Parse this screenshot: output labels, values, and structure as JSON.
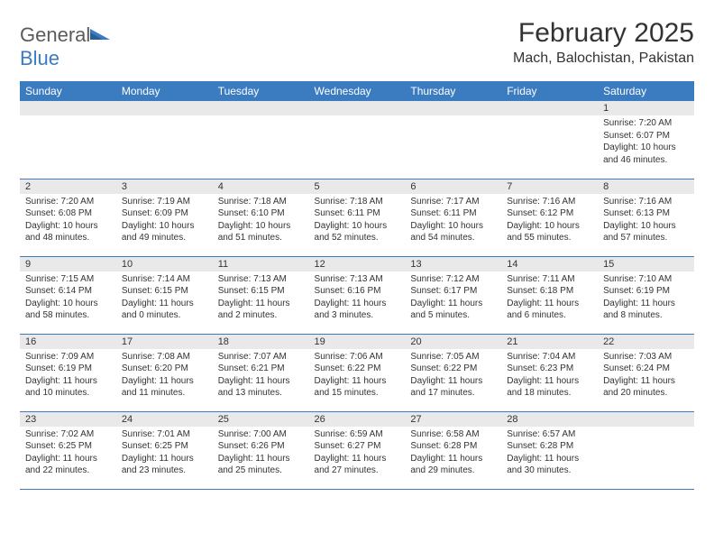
{
  "brand": {
    "word1": "General",
    "word2": "Blue",
    "word1_color": "#5b5b5b",
    "word2_color": "#3b7bbf",
    "icon_color": "#3b7bbf"
  },
  "title": "February 2025",
  "location": "Mach, Balochistan, Pakistan",
  "colors": {
    "header_bg": "#3b7bbf",
    "header_text": "#ffffff",
    "daynum_bg": "#e9e9e9",
    "row_divider": "#3b7bbf",
    "text": "#333333",
    "background": "#ffffff"
  },
  "typography": {
    "title_fontsize": 30,
    "location_fontsize": 16,
    "header_fontsize": 12,
    "daynum_fontsize": 11,
    "body_fontsize": 10
  },
  "layout": {
    "columns": 7,
    "rows": 5,
    "first_weekday_index": 6
  },
  "weekdays": [
    "Sunday",
    "Monday",
    "Tuesday",
    "Wednesday",
    "Thursday",
    "Friday",
    "Saturday"
  ],
  "days": [
    {
      "n": 1,
      "sunrise": "7:20 AM",
      "sunset": "6:07 PM",
      "daylight": "10 hours and 46 minutes."
    },
    {
      "n": 2,
      "sunrise": "7:20 AM",
      "sunset": "6:08 PM",
      "daylight": "10 hours and 48 minutes."
    },
    {
      "n": 3,
      "sunrise": "7:19 AM",
      "sunset": "6:09 PM",
      "daylight": "10 hours and 49 minutes."
    },
    {
      "n": 4,
      "sunrise": "7:18 AM",
      "sunset": "6:10 PM",
      "daylight": "10 hours and 51 minutes."
    },
    {
      "n": 5,
      "sunrise": "7:18 AM",
      "sunset": "6:11 PM",
      "daylight": "10 hours and 52 minutes."
    },
    {
      "n": 6,
      "sunrise": "7:17 AM",
      "sunset": "6:11 PM",
      "daylight": "10 hours and 54 minutes."
    },
    {
      "n": 7,
      "sunrise": "7:16 AM",
      "sunset": "6:12 PM",
      "daylight": "10 hours and 55 minutes."
    },
    {
      "n": 8,
      "sunrise": "7:16 AM",
      "sunset": "6:13 PM",
      "daylight": "10 hours and 57 minutes."
    },
    {
      "n": 9,
      "sunrise": "7:15 AM",
      "sunset": "6:14 PM",
      "daylight": "10 hours and 58 minutes."
    },
    {
      "n": 10,
      "sunrise": "7:14 AM",
      "sunset": "6:15 PM",
      "daylight": "11 hours and 0 minutes."
    },
    {
      "n": 11,
      "sunrise": "7:13 AM",
      "sunset": "6:15 PM",
      "daylight": "11 hours and 2 minutes."
    },
    {
      "n": 12,
      "sunrise": "7:13 AM",
      "sunset": "6:16 PM",
      "daylight": "11 hours and 3 minutes."
    },
    {
      "n": 13,
      "sunrise": "7:12 AM",
      "sunset": "6:17 PM",
      "daylight": "11 hours and 5 minutes."
    },
    {
      "n": 14,
      "sunrise": "7:11 AM",
      "sunset": "6:18 PM",
      "daylight": "11 hours and 6 minutes."
    },
    {
      "n": 15,
      "sunrise": "7:10 AM",
      "sunset": "6:19 PM",
      "daylight": "11 hours and 8 minutes."
    },
    {
      "n": 16,
      "sunrise": "7:09 AM",
      "sunset": "6:19 PM",
      "daylight": "11 hours and 10 minutes."
    },
    {
      "n": 17,
      "sunrise": "7:08 AM",
      "sunset": "6:20 PM",
      "daylight": "11 hours and 11 minutes."
    },
    {
      "n": 18,
      "sunrise": "7:07 AM",
      "sunset": "6:21 PM",
      "daylight": "11 hours and 13 minutes."
    },
    {
      "n": 19,
      "sunrise": "7:06 AM",
      "sunset": "6:22 PM",
      "daylight": "11 hours and 15 minutes."
    },
    {
      "n": 20,
      "sunrise": "7:05 AM",
      "sunset": "6:22 PM",
      "daylight": "11 hours and 17 minutes."
    },
    {
      "n": 21,
      "sunrise": "7:04 AM",
      "sunset": "6:23 PM",
      "daylight": "11 hours and 18 minutes."
    },
    {
      "n": 22,
      "sunrise": "7:03 AM",
      "sunset": "6:24 PM",
      "daylight": "11 hours and 20 minutes."
    },
    {
      "n": 23,
      "sunrise": "7:02 AM",
      "sunset": "6:25 PM",
      "daylight": "11 hours and 22 minutes."
    },
    {
      "n": 24,
      "sunrise": "7:01 AM",
      "sunset": "6:25 PM",
      "daylight": "11 hours and 23 minutes."
    },
    {
      "n": 25,
      "sunrise": "7:00 AM",
      "sunset": "6:26 PM",
      "daylight": "11 hours and 25 minutes."
    },
    {
      "n": 26,
      "sunrise": "6:59 AM",
      "sunset": "6:27 PM",
      "daylight": "11 hours and 27 minutes."
    },
    {
      "n": 27,
      "sunrise": "6:58 AM",
      "sunset": "6:28 PM",
      "daylight": "11 hours and 29 minutes."
    },
    {
      "n": 28,
      "sunrise": "6:57 AM",
      "sunset": "6:28 PM",
      "daylight": "11 hours and 30 minutes."
    }
  ],
  "labels": {
    "sunrise": "Sunrise:",
    "sunset": "Sunset:",
    "daylight": "Daylight:"
  }
}
